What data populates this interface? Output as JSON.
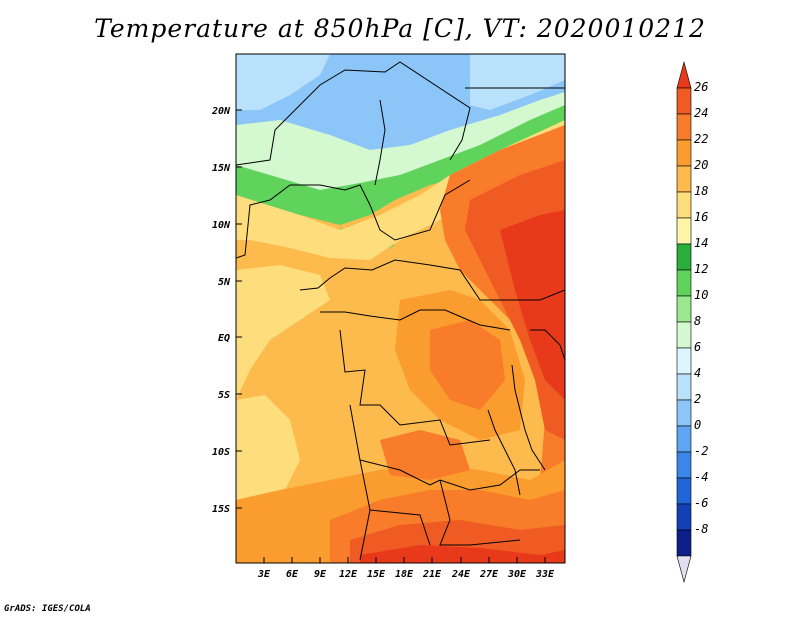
{
  "title": "Temperature at 850hPa [C], VT: 2020010212",
  "credit": "GrADS: IGES/COLA",
  "lat_labels": [
    "20N",
    "15N",
    "10N",
    "5N",
    "EQ",
    "5S",
    "10S",
    "15S"
  ],
  "lon_labels": [
    "3E",
    "6E",
    "9E",
    "12E",
    "15E",
    "18E",
    "21E",
    "24E",
    "27E",
    "30E",
    "33E"
  ],
  "colorbar": {
    "labels": [
      "26",
      "24",
      "22",
      "20",
      "18",
      "16",
      "14",
      "12",
      "10",
      "8",
      "6",
      "4",
      "2",
      "0",
      "-2",
      "-4",
      "-6",
      "-8"
    ],
    "colors": [
      "#e83a1b",
      "#f05a23",
      "#f87c2a",
      "#fa9c2e",
      "#fdbb4d",
      "#fedd7c",
      "#fef5a8",
      "#2ab03a",
      "#5fd35c",
      "#9be98f",
      "#d4f8d0",
      "#ddf5fc",
      "#b9e1fb",
      "#8cc6f8",
      "#5ea6f2",
      "#3a86ea",
      "#2166d8",
      "#1240b6",
      "#0c1f8a",
      "#e0e0f0"
    ]
  }
}
